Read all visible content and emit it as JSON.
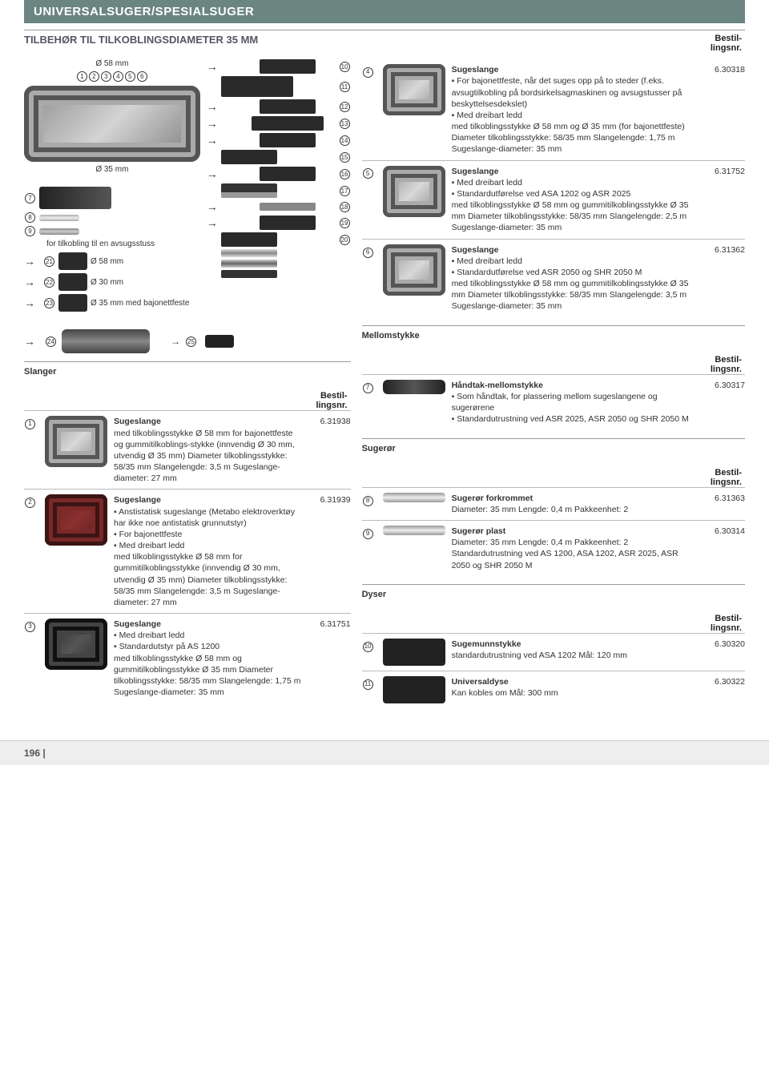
{
  "header": "UNIVERSALSUGER/SPESIALSUGER",
  "subheader": "TILBEHØR TIL TILKOBLINGSDIAMETER 35 MM",
  "bestil": "Bestil-\nlingsnr.",
  "diagram": {
    "dim58": "Ø 58 mm",
    "dim35": "Ø 35 mm",
    "note": "for tilkobling til en avsugsstuss",
    "d21": "Ø 58 mm",
    "d22": "Ø 30 mm",
    "d23": "Ø 35 mm med bajonettfeste"
  },
  "right_top": [
    {
      "n": "4",
      "title": "Sugeslange",
      "code": "6.30318",
      "bullets": [
        "For bajonettfeste, når det suges opp på to steder (f.eks. avsugtilkobling på bordsirkelsagmaskinen og avsugstusser på beskyttelsesdekslet)",
        "Med dreibart ledd"
      ],
      "text": "med tilkoblingsstykke Ø 58 mm og Ø 35 mm (for bajonettfeste) Diameter tilkoblingsstykke: 58/35 mm Slangelengde: 1,75 m Sugeslange-diameter: 35 mm"
    },
    {
      "n": "5",
      "title": "Sugeslange",
      "code": "6.31752",
      "bullets": [
        "Med dreibart ledd",
        "Standardutførelse ved ASA 1202 og ASR 2025"
      ],
      "text": "med tilkoblingsstykke Ø 58 mm og gummitilkoblingsstykke Ø 35 mm Diameter tilkoblingsstykke: 58/35 mm Slangelengde: 2,5 m Sugeslange-diameter: 35 mm"
    },
    {
      "n": "6",
      "title": "Sugeslange",
      "code": "6.31362",
      "bullets": [
        "Med dreibart ledd",
        "Standardutførelse ved ASR 2050 og SHR 2050 M"
      ],
      "text": "med tilkoblingsstykke Ø 58 mm og gummitilkoblingsstykke Ø 35 mm Diameter tilkoblingsstykke: 58/35 mm Slangelengde: 3,5 m Sugeslange-diameter: 35 mm"
    }
  ],
  "mellom": "Mellomstykke",
  "slanger": "Slanger",
  "left_items": [
    {
      "n": "1",
      "title": "Sugeslange",
      "code": "6.31938",
      "img": "",
      "text": "med tilkoblingsstykke Ø 58 mm for bajonettfeste og gummitilkoblings-stykke (innvendig Ø 30 mm, utvendig Ø 35 mm) Diameter tilkoblingsstykke: 58/35 mm Slangelengde: 3,5 m Sugeslange-diameter: 27 mm"
    },
    {
      "n": "2",
      "title": "Sugeslange",
      "code": "6.31939",
      "img": "red",
      "bullets": [
        "Anstistatisk sugeslange (Metabo elektroverktøy har ikke noe antistatisk grunnutstyr)",
        "For bajonettfeste",
        "Med dreibart ledd"
      ],
      "text": "med tilkoblingsstykke Ø 58 mm for gummitilkoblingsstykke (innvendig Ø 30 mm, utvendig Ø 35 mm) Diameter tilkoblingsstykke: 58/35 mm Slangelengde: 3,5 m Sugeslange-diameter: 27 mm"
    },
    {
      "n": "3",
      "title": "Sugeslange",
      "code": "6.31751",
      "img": "dark",
      "bullets": [
        "Med dreibart ledd",
        "Standardutstyr på AS 1200"
      ],
      "text": "med tilkoblingsstykke Ø 58 mm og gummitilkoblingsstykke Ø 35 mm Diameter tilkoblingsstykke: 58/35 mm Slangelengde: 1,75 m Sugeslange-diameter: 35 mm"
    }
  ],
  "handtak": {
    "n": "7",
    "title": "Håndtak-mellomstykke",
    "code": "6.30317",
    "bullets": [
      "Som håndtak, for plassering mellom sugeslangene og sugerørene",
      "Standardutrustning ved ASR 2025, ASR 2050 og SHR 2050 M"
    ]
  },
  "sugeror_h": "Sugerør",
  "sugeror": [
    {
      "n": "8",
      "title": "Sugerør forkrommet",
      "code": "6.31363",
      "text": "Diameter: 35 mm Lengde: 0,4 m Pakkeenhet: 2"
    },
    {
      "n": "9",
      "title": "Sugerør plast",
      "code": "6.30314",
      "text": "Diameter: 35 mm Lengde: 0,4 m Pakkeenhet: 2 Standardutrustning ved AS 1200, ASA 1202, ASR 2025, ASR 2050 og SHR 2050 M"
    }
  ],
  "dyser_h": "Dyser",
  "dyser": [
    {
      "n": "10",
      "title": "Sugemunnstykke",
      "code": "6.30320",
      "text": "standardutrustning ved ASA 1202 Mål: 120 mm"
    },
    {
      "n": "11",
      "title": "Universaldyse",
      "code": "6.30322",
      "text": "Kan kobles om Mål: 300 mm"
    }
  ],
  "footer": "196 |"
}
